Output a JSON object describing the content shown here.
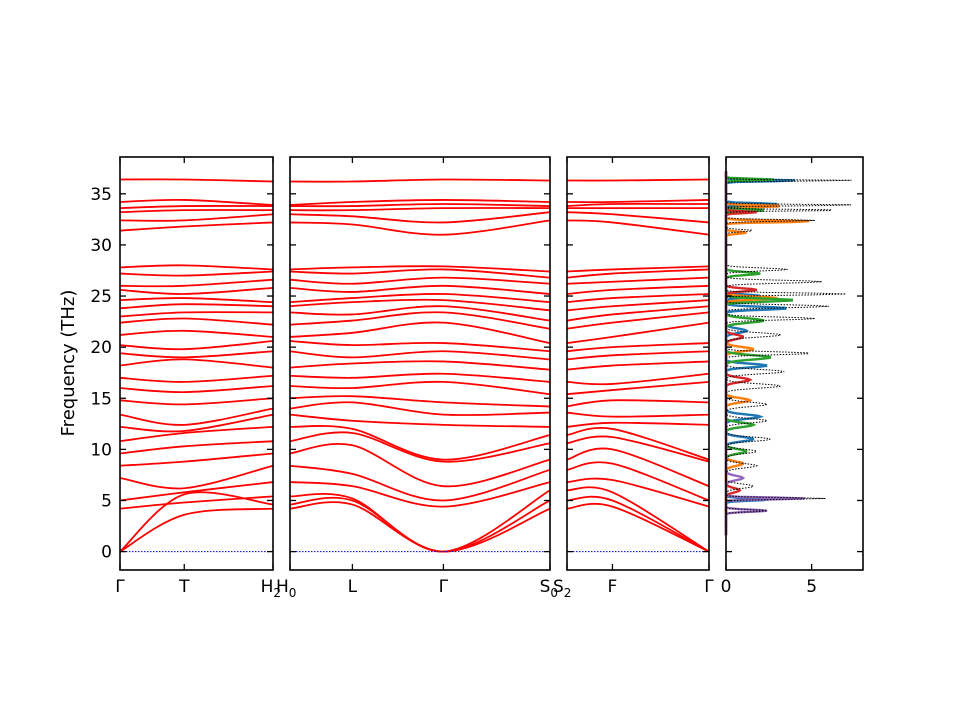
{
  "chart_data": {
    "type": "line",
    "title": "",
    "ylabel": "Frequency (THz)",
    "ylim": [
      -1.8,
      38.6
    ],
    "yticks": [
      "0",
      "5",
      "10",
      "15",
      "20",
      "25",
      "30",
      "35"
    ],
    "band_color": "#ff0000",
    "zero_line_color": "#0000cc",
    "segments": [
      {
        "name": "segment-1",
        "xticks": [
          {
            "pos": 0.0,
            "label": "Γ"
          },
          {
            "pos": 0.42,
            "label": "T"
          },
          {
            "pos": 1.0,
            "label": "H2"
          }
        ],
        "bands": [
          {
            "y": [
              0.0,
              3.6,
              4.2
            ]
          },
          {
            "y": [
              0.0,
              5.6,
              4.6
            ]
          },
          {
            "y": [
              4.2,
              4.8,
              5.4
            ]
          },
          {
            "y": [
              5.0,
              5.8,
              6.8
            ]
          },
          {
            "y": [
              7.2,
              6.2,
              8.4
            ]
          },
          {
            "y": [
              8.4,
              8.8,
              9.6
            ]
          },
          {
            "y": [
              9.6,
              10.3,
              10.8
            ]
          },
          {
            "y": [
              10.8,
              11.6,
              12.2
            ]
          },
          {
            "y": [
              12.2,
              11.8,
              13.4
            ]
          },
          {
            "y": [
              13.4,
              12.4,
              14.0
            ]
          },
          {
            "y": [
              14.8,
              14.4,
              15.0
            ]
          },
          {
            "y": [
              16.0,
              15.6,
              16.2
            ]
          },
          {
            "y": [
              17.0,
              16.6,
              17.2
            ]
          },
          {
            "y": [
              18.2,
              18.8,
              18.0
            ]
          },
          {
            "y": [
              19.4,
              19.0,
              19.6
            ]
          },
          {
            "y": [
              20.2,
              19.8,
              20.6
            ]
          },
          {
            "y": [
              21.2,
              21.6,
              21.0
            ]
          },
          {
            "y": [
              22.4,
              22.8,
              22.2
            ]
          },
          {
            "y": [
              23.0,
              23.4,
              23.4
            ]
          },
          {
            "y": [
              23.8,
              24.2,
              24.0
            ]
          },
          {
            "y": [
              24.6,
              24.8,
              24.4
            ]
          },
          {
            "y": [
              25.6,
              25.2,
              25.8
            ]
          },
          {
            "y": [
              26.0,
              26.0,
              26.6
            ]
          },
          {
            "y": [
              27.2,
              27.0,
              27.4
            ]
          },
          {
            "y": [
              27.8,
              28.0,
              27.6
            ]
          },
          {
            "y": [
              31.4,
              31.8,
              32.2
            ]
          },
          {
            "y": [
              32.4,
              32.4,
              33.0
            ]
          },
          {
            "y": [
              33.2,
              33.4,
              33.4
            ]
          },
          {
            "y": [
              33.6,
              33.8,
              33.8
            ]
          },
          {
            "y": [
              34.2,
              34.4,
              33.9
            ]
          },
          {
            "y": [
              36.4,
              36.4,
              36.2
            ]
          }
        ]
      },
      {
        "name": "segment-2",
        "xticks": [
          {
            "pos": 0.0,
            "label": "H0"
          },
          {
            "pos": 0.24,
            "label": "L"
          },
          {
            "pos": 0.59,
            "label": "Γ"
          },
          {
            "pos": 1.0,
            "label": "S0"
          }
        ],
        "bands": [
          {
            "y": [
              4.2,
              4.6,
              0.0,
              4.2
            ]
          },
          {
            "y": [
              4.6,
              5.0,
              0.0,
              5.0
            ]
          },
          {
            "y": [
              5.4,
              5.2,
              0.0,
              6.0
            ]
          },
          {
            "y": [
              6.8,
              6.4,
              4.4,
              6.8
            ]
          },
          {
            "y": [
              8.4,
              7.6,
              5.0,
              8.0
            ]
          },
          {
            "y": [
              9.6,
              10.4,
              6.4,
              9.0
            ]
          },
          {
            "y": [
              10.8,
              11.6,
              8.8,
              10.6
            ]
          },
          {
            "y": [
              12.2,
              12.0,
              9.0,
              11.4
            ]
          },
          {
            "y": [
              13.4,
              12.8,
              12.4,
              12.2
            ]
          },
          {
            "y": [
              14.0,
              14.6,
              13.4,
              13.6
            ]
          },
          {
            "y": [
              15.0,
              15.2,
              14.6,
              14.2
            ]
          },
          {
            "y": [
              16.2,
              16.0,
              16.6,
              15.4
            ]
          },
          {
            "y": [
              17.2,
              17.0,
              17.4,
              16.6
            ]
          },
          {
            "y": [
              18.0,
              18.4,
              18.6,
              17.8
            ]
          },
          {
            "y": [
              19.6,
              19.0,
              19.6,
              18.8
            ]
          },
          {
            "y": [
              20.6,
              20.2,
              20.4,
              19.6
            ]
          },
          {
            "y": [
              21.0,
              21.4,
              22.4,
              20.4
            ]
          },
          {
            "y": [
              22.2,
              22.6,
              23.4,
              21.8
            ]
          },
          {
            "y": [
              23.4,
              23.2,
              24.0,
              22.6
            ]
          },
          {
            "y": [
              24.0,
              24.4,
              24.6,
              23.6
            ]
          },
          {
            "y": [
              24.4,
              24.8,
              25.2,
              24.4
            ]
          },
          {
            "y": [
              25.8,
              25.4,
              26.0,
              25.2
            ]
          },
          {
            "y": [
              26.6,
              26.2,
              26.8,
              26.2
            ]
          },
          {
            "y": [
              27.4,
              27.2,
              27.6,
              26.8
            ]
          },
          {
            "y": [
              27.6,
              27.8,
              27.9,
              27.4
            ]
          },
          {
            "y": [
              32.2,
              32.0,
              31.0,
              32.4
            ]
          },
          {
            "y": [
              33.0,
              32.8,
              32.2,
              33.2
            ]
          },
          {
            "y": [
              33.4,
              33.4,
              33.6,
              33.6
            ]
          },
          {
            "y": [
              33.8,
              33.8,
              34.0,
              33.8
            ]
          },
          {
            "y": [
              33.9,
              34.2,
              34.4,
              34.2
            ]
          },
          {
            "y": [
              36.2,
              36.2,
              36.4,
              36.3
            ]
          }
        ]
      },
      {
        "name": "segment-3",
        "xticks": [
          {
            "pos": 0.0,
            "label": "S2"
          },
          {
            "pos": 0.32,
            "label": "F"
          },
          {
            "pos": 1.0,
            "label": "Γ"
          }
        ],
        "bands": [
          {
            "y": [
              4.2,
              4.4,
              0.0
            ]
          },
          {
            "y": [
              5.0,
              5.0,
              0.0
            ]
          },
          {
            "y": [
              6.0,
              5.8,
              0.0
            ]
          },
          {
            "y": [
              6.8,
              7.0,
              4.4
            ]
          },
          {
            "y": [
              8.0,
              8.6,
              5.0
            ]
          },
          {
            "y": [
              9.0,
              10.0,
              6.4
            ]
          },
          {
            "y": [
              10.6,
              11.2,
              8.8
            ]
          },
          {
            "y": [
              11.4,
              12.0,
              9.0
            ]
          },
          {
            "y": [
              12.2,
              12.6,
              12.4
            ]
          },
          {
            "y": [
              13.6,
              13.2,
              13.4
            ]
          },
          {
            "y": [
              14.2,
              14.8,
              14.6
            ]
          },
          {
            "y": [
              15.4,
              15.8,
              16.6
            ]
          },
          {
            "y": [
              16.6,
              16.4,
              17.4
            ]
          },
          {
            "y": [
              17.8,
              18.2,
              18.6
            ]
          },
          {
            "y": [
              18.8,
              19.2,
              19.6
            ]
          },
          {
            "y": [
              19.6,
              20.0,
              20.4
            ]
          },
          {
            "y": [
              20.4,
              21.0,
              22.4
            ]
          },
          {
            "y": [
              21.8,
              22.4,
              23.4
            ]
          },
          {
            "y": [
              22.6,
              23.2,
              24.0
            ]
          },
          {
            "y": [
              23.6,
              24.0,
              24.6
            ]
          },
          {
            "y": [
              24.4,
              24.8,
              25.2
            ]
          },
          {
            "y": [
              25.2,
              25.6,
              26.0
            ]
          },
          {
            "y": [
              26.2,
              26.4,
              26.8
            ]
          },
          {
            "y": [
              26.8,
              27.2,
              27.6
            ]
          },
          {
            "y": [
              27.4,
              27.6,
              27.9
            ]
          },
          {
            "y": [
              32.4,
              32.2,
              31.0
            ]
          },
          {
            "y": [
              33.2,
              33.0,
              32.2
            ]
          },
          {
            "y": [
              33.6,
              33.6,
              33.6
            ]
          },
          {
            "y": [
              33.8,
              34.0,
              34.0
            ]
          },
          {
            "y": [
              34.2,
              34.2,
              34.4
            ]
          },
          {
            "y": [
              36.3,
              36.3,
              36.4
            ]
          }
        ]
      }
    ],
    "dos": {
      "xlim": [
        0,
        8
      ],
      "xticks": [
        "0",
        "5"
      ],
      "total_color": "#000000",
      "series": [
        {
          "color": "#1f77b4",
          "peaks": [
            [
              5.1,
              2.6,
              0.15
            ],
            [
              11.0,
              1.6,
              0.3
            ],
            [
              13.2,
              2.0,
              0.3
            ],
            [
              18.2,
              2.4,
              0.25
            ],
            [
              21.6,
              1.2,
              0.3
            ],
            [
              23.8,
              3.6,
              0.2
            ],
            [
              25.0,
              2.0,
              0.2
            ],
            [
              34.0,
              3.0,
              0.12
            ],
            [
              36.3,
              4.2,
              0.1
            ]
          ]
        },
        {
          "color": "#ff7f0e",
          "peaks": [
            [
              8.6,
              1.0,
              0.3
            ],
            [
              14.8,
              1.4,
              0.3
            ],
            [
              19.8,
              1.6,
              0.3
            ],
            [
              24.8,
              3.0,
              0.2
            ],
            [
              31.2,
              1.2,
              0.15
            ],
            [
              32.3,
              5.0,
              0.12
            ],
            [
              33.8,
              3.4,
              0.12
            ]
          ]
        },
        {
          "color": "#2ca02c",
          "peaks": [
            [
              9.8,
              1.2,
              0.3
            ],
            [
              12.4,
              1.6,
              0.3
            ],
            [
              19.0,
              2.6,
              0.3
            ],
            [
              22.6,
              2.2,
              0.3
            ],
            [
              24.6,
              4.0,
              0.2
            ],
            [
              27.2,
              2.0,
              0.2
            ],
            [
              33.4,
              2.4,
              0.12
            ],
            [
              36.4,
              2.8,
              0.1
            ]
          ]
        },
        {
          "color": "#d62728",
          "peaks": [
            [
              6.0,
              0.8,
              0.3
            ],
            [
              16.8,
              1.4,
              0.3
            ],
            [
              21.0,
              1.0,
              0.3
            ],
            [
              25.6,
              1.8,
              0.2
            ],
            [
              33.2,
              1.8,
              0.12
            ]
          ]
        },
        {
          "color": "#9467bd",
          "peaks": [
            [
              4.0,
              2.4,
              0.15
            ],
            [
              5.2,
              4.6,
              0.12
            ],
            [
              7.2,
              1.0,
              0.3
            ]
          ]
        }
      ],
      "total_peaks": [
        [
          4.0,
          2.4,
          0.15
        ],
        [
          5.2,
          5.8,
          0.12
        ],
        [
          6.4,
          1.6,
          0.3
        ],
        [
          8.4,
          1.8,
          0.3
        ],
        [
          9.8,
          1.8,
          0.3
        ],
        [
          11.0,
          2.6,
          0.3
        ],
        [
          12.8,
          2.4,
          0.3
        ],
        [
          14.4,
          2.4,
          0.3
        ],
        [
          16.2,
          3.2,
          0.3
        ],
        [
          17.6,
          3.4,
          0.3
        ],
        [
          19.4,
          5.0,
          0.2
        ],
        [
          21.2,
          3.2,
          0.3
        ],
        [
          22.8,
          5.2,
          0.2
        ],
        [
          24.0,
          6.0,
          0.2
        ],
        [
          25.2,
          7.0,
          0.15
        ],
        [
          26.4,
          5.6,
          0.2
        ],
        [
          27.6,
          3.6,
          0.2
        ],
        [
          31.4,
          1.6,
          0.15
        ],
        [
          32.4,
          5.2,
          0.12
        ],
        [
          33.4,
          7.2,
          0.1
        ],
        [
          33.9,
          7.6,
          0.1
        ],
        [
          36.3,
          7.8,
          0.08
        ]
      ]
    }
  }
}
